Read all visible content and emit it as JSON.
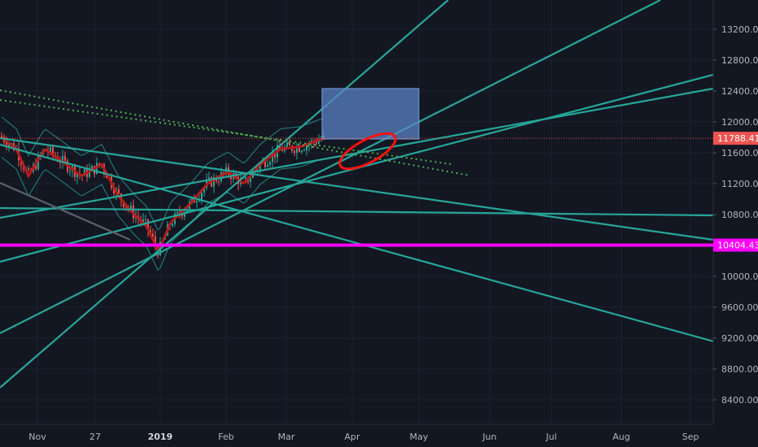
{
  "chart_data": {
    "type": "candlestick",
    "title": "",
    "xlabel": "",
    "ylabel": "",
    "ylim": [
      8000,
      14000
    ],
    "grid": true,
    "x_ticks": [
      "Nov",
      "27",
      "2019",
      "Feb",
      "Mar",
      "Apr",
      "May",
      "Jun",
      "Jul",
      "Aug",
      "Sep"
    ],
    "y_ticks": [
      "8400.00",
      "8800.00",
      "9200.00",
      "9600.00",
      "10000.00",
      "10400.00",
      "10800.00",
      "11200.00",
      "11600.00",
      "12000.00",
      "12400.00",
      "12800.00",
      "13200.00"
    ],
    "y_tick_values": [
      8400,
      8800,
      9200,
      9600,
      10000,
      10400,
      10800,
      11200,
      11600,
      12000,
      12400,
      12800,
      13200
    ],
    "price_labels": [
      {
        "text": "11788.41",
        "value": 11788.41,
        "color": "#ef5350"
      },
      {
        "text": "10404.43",
        "value": 10404.43,
        "color": "#ff00ff"
      }
    ],
    "colors": {
      "background": "#131722",
      "trendline": "#26a69a",
      "dotted_channel": "#4caf50",
      "support_line": "#ff00ff",
      "current_price_line": "#ef5350",
      "moving_average": "#b71c1c",
      "bollinger": "#26a69a",
      "target_box": "#5b85c9",
      "highlight_ellipse": "#ff1010"
    }
  }
}
